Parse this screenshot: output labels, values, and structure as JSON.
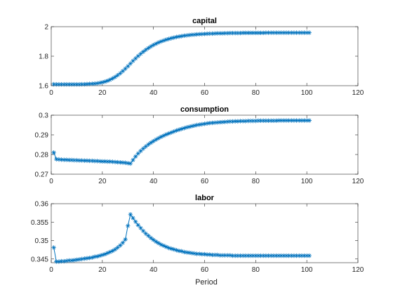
{
  "figure": {
    "xlabel": "Period"
  },
  "chart_data": [
    {
      "type": "line",
      "title": "capital",
      "xlim": [
        0,
        120
      ],
      "ylim": [
        1.6,
        2.0
      ],
      "xticks": [
        0,
        20,
        40,
        60,
        80,
        100,
        120
      ],
      "yticks": [
        1.6,
        1.8,
        2.0
      ],
      "ytick_labels": [
        "1.6",
        "1.8",
        "2"
      ],
      "marker": "asterisk",
      "color": "#0072bd",
      "x": [
        1,
        2,
        3,
        4,
        5,
        6,
        7,
        8,
        9,
        10,
        11,
        12,
        13,
        14,
        15,
        16,
        17,
        18,
        19,
        20,
        21,
        22,
        23,
        24,
        25,
        26,
        27,
        28,
        29,
        30,
        31,
        32,
        33,
        34,
        35,
        36,
        37,
        38,
        39,
        40,
        41,
        42,
        43,
        44,
        45,
        46,
        47,
        48,
        49,
        50,
        51,
        52,
        53,
        54,
        55,
        56,
        57,
        58,
        59,
        60,
        61,
        62,
        63,
        64,
        65,
        66,
        67,
        68,
        69,
        70,
        71,
        72,
        73,
        74,
        75,
        76,
        77,
        78,
        79,
        80,
        81,
        82,
        83,
        84,
        85,
        86,
        87,
        88,
        89,
        90,
        91,
        92,
        93,
        94,
        95,
        96,
        97,
        98,
        99,
        100,
        101
      ],
      "y": [
        1.61,
        1.609,
        1.609,
        1.609,
        1.609,
        1.609,
        1.609,
        1.609,
        1.609,
        1.609,
        1.609,
        1.61,
        1.61,
        1.611,
        1.612,
        1.613,
        1.614,
        1.616,
        1.619,
        1.623,
        1.627,
        1.633,
        1.64,
        1.649,
        1.659,
        1.671,
        1.684,
        1.699,
        1.715,
        1.732,
        1.75,
        1.768,
        1.785,
        1.801,
        1.816,
        1.83,
        1.843,
        1.855,
        1.866,
        1.876,
        1.885,
        1.893,
        1.9,
        1.906,
        1.912,
        1.917,
        1.922,
        1.926,
        1.93,
        1.933,
        1.936,
        1.939,
        1.941,
        1.943,
        1.945,
        1.946,
        1.948,
        1.949,
        1.95,
        1.951,
        1.952,
        1.953,
        1.953,
        1.954,
        1.955,
        1.955,
        1.955,
        1.956,
        1.956,
        1.957,
        1.957,
        1.957,
        1.957,
        1.957,
        1.958,
        1.958,
        1.958,
        1.958,
        1.958,
        1.958,
        1.958,
        1.958,
        1.958,
        1.959,
        1.959,
        1.959,
        1.959,
        1.959,
        1.959,
        1.959,
        1.959,
        1.959,
        1.959,
        1.959,
        1.959,
        1.959,
        1.959,
        1.959,
        1.959,
        1.959,
        1.959
      ]
    },
    {
      "type": "line",
      "title": "consumption",
      "xlim": [
        0,
        120
      ],
      "ylim": [
        0.27,
        0.3
      ],
      "xticks": [
        0,
        20,
        40,
        60,
        80,
        100,
        120
      ],
      "yticks": [
        0.27,
        0.28,
        0.29,
        0.3
      ],
      "ytick_labels": [
        "0.27",
        "0.28",
        "0.29",
        "0.3"
      ],
      "marker": "asterisk",
      "color": "#0072bd",
      "x": [
        1,
        2,
        3,
        4,
        5,
        6,
        7,
        8,
        9,
        10,
        11,
        12,
        13,
        14,
        15,
        16,
        17,
        18,
        19,
        20,
        21,
        22,
        23,
        24,
        25,
        26,
        27,
        28,
        29,
        30,
        31,
        32,
        33,
        34,
        35,
        36,
        37,
        38,
        39,
        40,
        41,
        42,
        43,
        44,
        45,
        46,
        47,
        48,
        49,
        50,
        51,
        52,
        53,
        54,
        55,
        56,
        57,
        58,
        59,
        60,
        61,
        62,
        63,
        64,
        65,
        66,
        67,
        68,
        69,
        70,
        71,
        72,
        73,
        74,
        75,
        76,
        77,
        78,
        79,
        80,
        81,
        82,
        83,
        84,
        85,
        86,
        87,
        88,
        89,
        90,
        91,
        92,
        93,
        94,
        95,
        96,
        97,
        98,
        99,
        100,
        101
      ],
      "y": [
        0.281,
        0.2776,
        0.2775,
        0.2774,
        0.2773,
        0.2773,
        0.2772,
        0.2772,
        0.2771,
        0.2771,
        0.277,
        0.277,
        0.2769,
        0.2769,
        0.2768,
        0.2768,
        0.2767,
        0.2767,
        0.2766,
        0.2765,
        0.2765,
        0.2764,
        0.2764,
        0.2763,
        0.2762,
        0.2761,
        0.276,
        0.2759,
        0.2758,
        0.2756,
        0.2754,
        0.2772,
        0.279,
        0.2805,
        0.2818,
        0.283,
        0.2841,
        0.2851,
        0.286,
        0.2868,
        0.2876,
        0.2883,
        0.289,
        0.2896,
        0.2902,
        0.2907,
        0.2912,
        0.2917,
        0.2922,
        0.2926,
        0.293,
        0.2934,
        0.2938,
        0.2941,
        0.2944,
        0.2947,
        0.295,
        0.2952,
        0.2954,
        0.2956,
        0.2958,
        0.296,
        0.2961,
        0.2962,
        0.2963,
        0.2964,
        0.2965,
        0.2966,
        0.2967,
        0.2968,
        0.2968,
        0.2969,
        0.2969,
        0.297,
        0.297,
        0.297,
        0.2971,
        0.2971,
        0.2971,
        0.2971,
        0.2972,
        0.2972,
        0.2972,
        0.2972,
        0.2972,
        0.2972,
        0.2972,
        0.2972,
        0.2973,
        0.2973,
        0.2973,
        0.2973,
        0.2973,
        0.2973,
        0.2973,
        0.2973,
        0.2973,
        0.2973,
        0.2973,
        0.2973,
        0.2973
      ]
    },
    {
      "type": "line",
      "title": "labor",
      "xlim": [
        0,
        120
      ],
      "ylim": [
        0.344,
        0.36
      ],
      "xticks": [
        0,
        20,
        40,
        60,
        80,
        100,
        120
      ],
      "yticks": [
        0.345,
        0.35,
        0.355,
        0.36
      ],
      "ytick_labels": [
        "0.345",
        "0.35",
        "0.355",
        "0.36"
      ],
      "marker": "asterisk",
      "color": "#0072bd",
      "x": [
        1,
        2,
        3,
        4,
        5,
        6,
        7,
        8,
        9,
        10,
        11,
        12,
        13,
        14,
        15,
        16,
        17,
        18,
        19,
        20,
        21,
        22,
        23,
        24,
        25,
        26,
        27,
        28,
        29,
        30,
        31,
        32,
        33,
        34,
        35,
        36,
        37,
        38,
        39,
        40,
        41,
        42,
        43,
        44,
        45,
        46,
        47,
        48,
        49,
        50,
        51,
        52,
        53,
        54,
        55,
        56,
        57,
        58,
        59,
        60,
        61,
        62,
        63,
        64,
        65,
        66,
        67,
        68,
        69,
        70,
        71,
        72,
        73,
        74,
        75,
        76,
        77,
        78,
        79,
        80,
        81,
        82,
        83,
        84,
        85,
        86,
        87,
        88,
        89,
        90,
        91,
        92,
        93,
        94,
        95,
        96,
        97,
        98,
        99,
        100,
        101
      ],
      "y": [
        0.3481,
        0.3443,
        0.3443,
        0.3444,
        0.3444,
        0.3445,
        0.3446,
        0.3446,
        0.3447,
        0.3448,
        0.3449,
        0.345,
        0.3451,
        0.3452,
        0.3453,
        0.3454,
        0.3456,
        0.3457,
        0.3459,
        0.3461,
        0.3463,
        0.3466,
        0.3469,
        0.3472,
        0.3476,
        0.3481,
        0.3487,
        0.3494,
        0.3503,
        0.354,
        0.3571,
        0.3561,
        0.3551,
        0.3542,
        0.3534,
        0.3526,
        0.3519,
        0.3513,
        0.3507,
        0.3502,
        0.3497,
        0.3493,
        0.3489,
        0.3486,
        0.3483,
        0.348,
        0.3478,
        0.3476,
        0.3474,
        0.3472,
        0.3471,
        0.3469,
        0.3468,
        0.3467,
        0.3466,
        0.3465,
        0.3464,
        0.3464,
        0.3463,
        0.3463,
        0.3462,
        0.3462,
        0.3461,
        0.3461,
        0.3461,
        0.346,
        0.346,
        0.346,
        0.346,
        0.346,
        0.3459,
        0.3459,
        0.3459,
        0.3459,
        0.3459,
        0.3459,
        0.3459,
        0.3459,
        0.3459,
        0.3459,
        0.3459,
        0.3459,
        0.3459,
        0.3459,
        0.3459,
        0.3459,
        0.3459,
        0.3459,
        0.3459,
        0.3459,
        0.3459,
        0.3459,
        0.3459,
        0.3459,
        0.3459,
        0.3459,
        0.3459,
        0.3459,
        0.3459,
        0.3459,
        0.3459
      ]
    }
  ]
}
